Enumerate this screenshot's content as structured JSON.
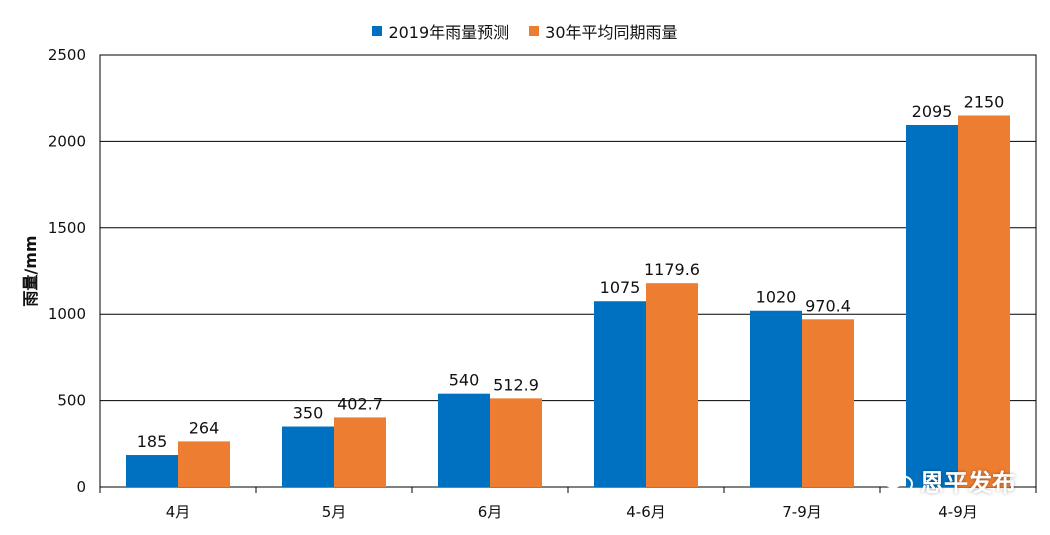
{
  "chart_data": {
    "type": "bar",
    "categories": [
      "4月",
      "5月",
      "6月",
      "4-6月",
      "7-9月",
      "4-9月"
    ],
    "series": [
      {
        "name": "2019年雨量预测",
        "values": [
          185,
          350,
          540,
          1075,
          1020,
          2095
        ],
        "labels": [
          "185",
          "350",
          "540",
          "1075",
          "1020",
          "2095"
        ],
        "color": "#0070C0"
      },
      {
        "name": "30年平均同期雨量",
        "values": [
          264,
          402.7,
          512.9,
          1179.6,
          970.4,
          2150
        ],
        "labels": [
          "264",
          "402.7",
          "512.9",
          "1179.6",
          "970.4",
          "2150"
        ],
        "color": "#ED7D31"
      }
    ],
    "ylabel": "雨量/mm",
    "xlabel": "",
    "ylim": [
      0,
      2500
    ],
    "yticks": [
      "0",
      "500",
      "1000",
      "1500",
      "2000",
      "2500"
    ],
    "grid": true,
    "legend_position": "top-center"
  },
  "watermark": {
    "text": "恩平发布",
    "icon": "wechat-icon"
  }
}
